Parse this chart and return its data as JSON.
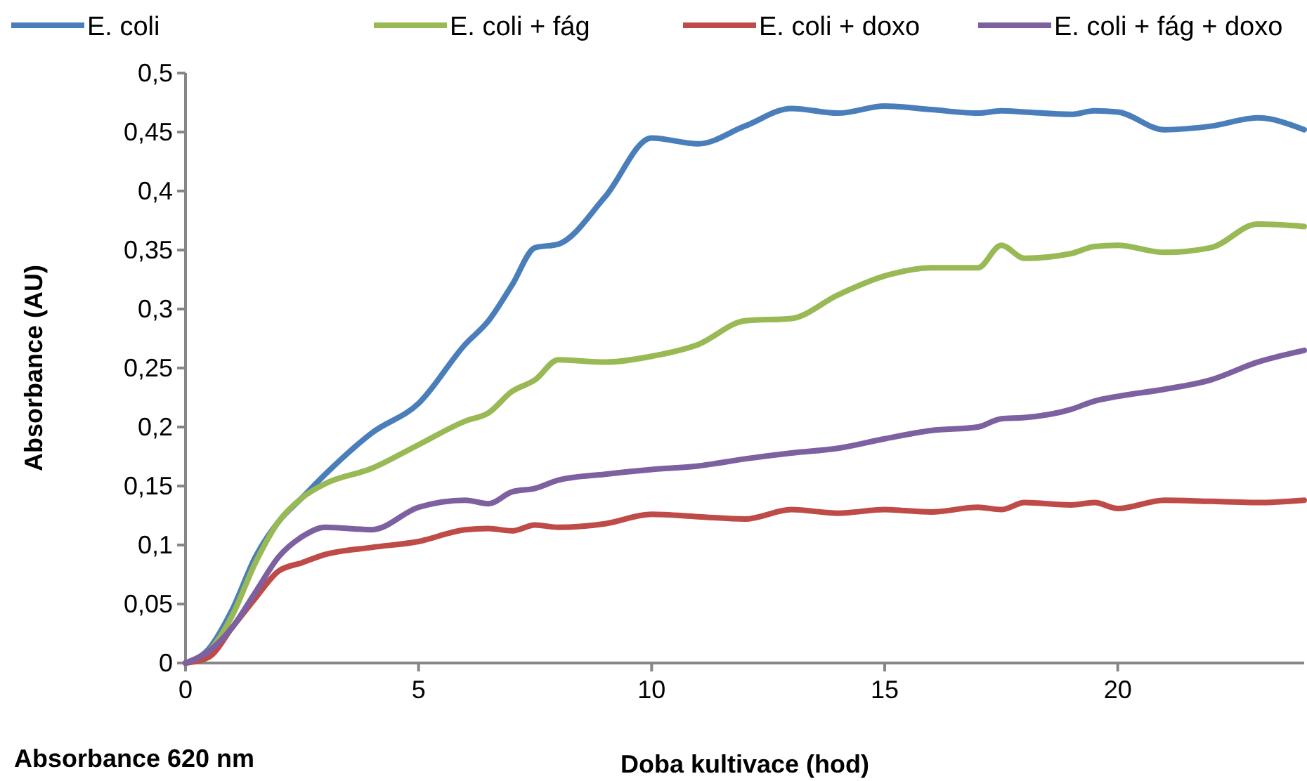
{
  "chart_data": {
    "type": "line",
    "xlabel": "Doba kultivace (hod)",
    "ylabel": "Absorbance (AU)",
    "annotations": [
      "Absorbance 620 nm"
    ],
    "x": [
      0,
      0.5,
      1,
      1.5,
      2,
      2.5,
      3,
      4,
      5,
      6,
      6.5,
      7,
      7.5,
      8,
      9,
      10,
      11,
      12,
      13,
      14,
      15,
      16,
      17,
      17.5,
      18,
      19,
      19.5,
      20,
      21,
      22,
      23,
      24
    ],
    "series": [
      {
        "name": "E. coli",
        "color": "#4a7ebb",
        "values": [
          0,
          0.012,
          0.045,
          0.09,
          0.12,
          0.14,
          0.16,
          0.195,
          0.22,
          0.27,
          0.29,
          0.32,
          0.352,
          0.355,
          0.395,
          0.445,
          0.44,
          0.455,
          0.47,
          0.466,
          0.472,
          0.469,
          0.466,
          0.468,
          0.467,
          0.465,
          0.468,
          0.467,
          0.452,
          0.455,
          0.462,
          0.452
        ]
      },
      {
        "name": "E. coli + fág",
        "color": "#98b954",
        "values": [
          0,
          0.01,
          0.04,
          0.085,
          0.12,
          0.14,
          0.152,
          0.165,
          0.185,
          0.205,
          0.212,
          0.23,
          0.24,
          0.257,
          0.255,
          0.26,
          0.27,
          0.29,
          0.292,
          0.312,
          0.328,
          0.335,
          0.335,
          0.354,
          0.343,
          0.347,
          0.353,
          0.354,
          0.348,
          0.352,
          0.372,
          0.37
        ]
      },
      {
        "name": "E. coli + doxo",
        "color": "#be4b48",
        "values": [
          0,
          0.005,
          0.03,
          0.055,
          0.078,
          0.085,
          0.092,
          0.098,
          0.103,
          0.113,
          0.114,
          0.112,
          0.117,
          0.115,
          0.118,
          0.126,
          0.124,
          0.122,
          0.13,
          0.127,
          0.13,
          0.128,
          0.132,
          0.13,
          0.136,
          0.134,
          0.136,
          0.131,
          0.138,
          0.137,
          0.136,
          0.138
        ]
      },
      {
        "name": "E. coli + fág + doxo",
        "color": "#7d60a0",
        "values": [
          0,
          0.01,
          0.03,
          0.06,
          0.09,
          0.107,
          0.115,
          0.113,
          0.132,
          0.138,
          0.135,
          0.145,
          0.148,
          0.155,
          0.16,
          0.164,
          0.167,
          0.173,
          0.178,
          0.182,
          0.19,
          0.197,
          0.2,
          0.207,
          0.208,
          0.215,
          0.222,
          0.226,
          0.232,
          0.24,
          0.255,
          0.265
        ]
      }
    ],
    "xlim": [
      0,
      24
    ],
    "xticks": [
      0,
      5,
      10,
      15,
      20
    ],
    "ylim": [
      0,
      0.5
    ],
    "yticks": [
      {
        "value": 0,
        "label": "0"
      },
      {
        "value": 0.05,
        "label": "0,05"
      },
      {
        "value": 0.1,
        "label": "0,1"
      },
      {
        "value": 0.15,
        "label": "0,15"
      },
      {
        "value": 0.2,
        "label": "0,2"
      },
      {
        "value": 0.25,
        "label": "0,25"
      },
      {
        "value": 0.3,
        "label": "0,3"
      },
      {
        "value": 0.35,
        "label": "0,35"
      },
      {
        "value": 0.4,
        "label": "0,4"
      },
      {
        "value": 0.45,
        "label": "0,45"
      },
      {
        "value": 0.5,
        "label": "0,5"
      }
    ],
    "grid": false,
    "legend": "top",
    "marker": "none",
    "line_style": "solid"
  }
}
